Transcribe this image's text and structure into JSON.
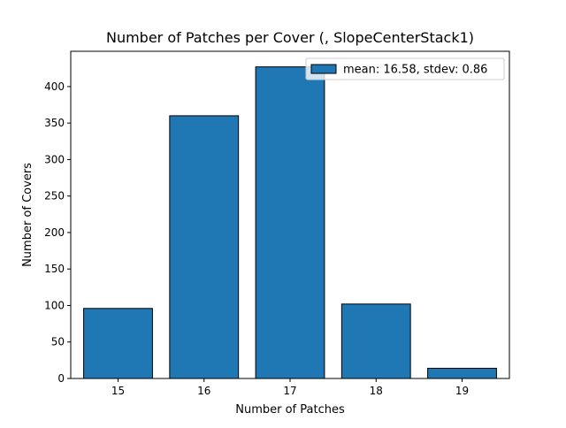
{
  "chart_data": {
    "type": "bar",
    "title": "Number of Patches per Cover (, SlopeCenterStack1)",
    "xlabel": "Number of Patches",
    "ylabel": "Number of Covers",
    "categories": [
      15,
      16,
      17,
      18,
      19
    ],
    "values": [
      96,
      360,
      427,
      102,
      14
    ],
    "xlim": [
      14.45,
      19.55
    ],
    "ylim": [
      0,
      448.35
    ],
    "xticks": [
      15,
      16,
      17,
      18,
      19
    ],
    "yticks": [
      0,
      50,
      100,
      150,
      200,
      250,
      300,
      350,
      400
    ],
    "bar_width": 0.8,
    "grid": false,
    "legend": {
      "position": "top-right",
      "entries": [
        {
          "label": "mean: 16.58, stdev: 0.86"
        }
      ]
    },
    "colors": {
      "bar": "#1f77b4",
      "edge": "#000000"
    }
  }
}
